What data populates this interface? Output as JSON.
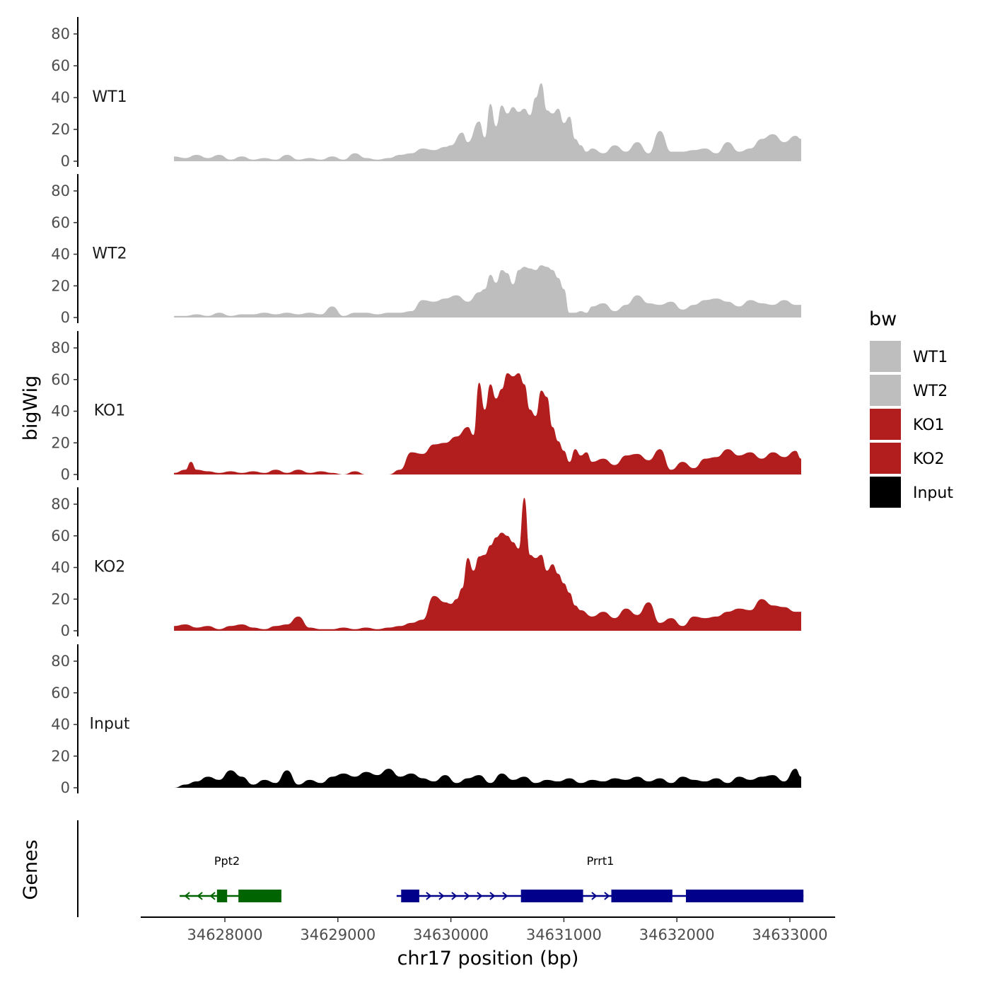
{
  "chart_data": {
    "type": "area",
    "ylabel": "bigWig",
    "xlabel": "chr17 position (bp)",
    "xlim": [
      34627300,
      34633400
    ],
    "ylim": [
      0,
      88
    ],
    "y_ticks": [
      0,
      20,
      40,
      60,
      80
    ],
    "x_ticks": [
      34628000,
      34629000,
      34630000,
      34631000,
      34632000,
      34633000
    ],
    "grid": false,
    "legend": {
      "title": "bw",
      "position": "right",
      "entries": [
        {
          "label": "WT1",
          "color": "#bebebe"
        },
        {
          "label": "WT2",
          "color": "#bebebe"
        },
        {
          "label": "KO1",
          "color": "#b21e1e"
        },
        {
          "label": "KO2",
          "color": "#b21e1e"
        },
        {
          "label": "Input",
          "color": "#000000"
        }
      ]
    },
    "series": [
      {
        "name": "WT1",
        "color": "#bebebe",
        "x": [
          34627550,
          34627650,
          34627750,
          34627850,
          34627950,
          34628050,
          34628150,
          34628250,
          34628350,
          34628450,
          34628550,
          34628650,
          34628750,
          34628850,
          34628950,
          34629050,
          34629150,
          34629250,
          34629350,
          34629450,
          34629550,
          34629650,
          34629750,
          34629850,
          34629950,
          34630000,
          34630100,
          34630150,
          34630250,
          34630300,
          34630350,
          34630400,
          34630450,
          34630500,
          34630550,
          34630600,
          34630650,
          34630700,
          34630750,
          34630800,
          34630850,
          34630900,
          34630950,
          34631000,
          34631050,
          34631100,
          34631150,
          34631200,
          34631250,
          34631350,
          34631450,
          34631550,
          34631650,
          34631750,
          34631850,
          34631950,
          34632050,
          34632150,
          34632250,
          34632350,
          34632450,
          34632550,
          34632650,
          34632750,
          34632850,
          34632950,
          34633050,
          34633100
        ],
        "y": [
          3,
          2,
          4,
          2,
          4,
          1,
          3,
          1,
          2,
          1,
          4,
          1,
          2,
          1,
          3,
          1,
          5,
          2,
          1,
          2,
          4,
          5,
          8,
          7,
          9,
          10,
          18,
          12,
          25,
          15,
          36,
          22,
          35,
          30,
          34,
          31,
          33,
          29,
          40,
          49,
          32,
          30,
          33,
          24,
          28,
          14,
          10,
          6,
          8,
          5,
          10,
          6,
          12,
          5,
          19,
          6,
          6,
          7,
          8,
          5,
          12,
          6,
          8,
          14,
          17,
          12,
          16,
          14
        ]
      },
      {
        "name": "WT2",
        "color": "#bebebe",
        "x": [
          34627550,
          34627650,
          34627750,
          34627850,
          34627950,
          34628050,
          34628150,
          34628250,
          34628350,
          34628450,
          34628550,
          34628650,
          34628750,
          34628850,
          34628950,
          34629050,
          34629150,
          34629250,
          34629350,
          34629450,
          34629550,
          34629650,
          34629750,
          34629850,
          34629950,
          34630050,
          34630150,
          34630250,
          34630300,
          34630350,
          34630400,
          34630450,
          34630500,
          34630550,
          34630600,
          34630650,
          34630700,
          34630750,
          34630800,
          34630850,
          34630900,
          34630950,
          34631000,
          34631050,
          34631100,
          34631150,
          34631200,
          34631250,
          34631350,
          34631450,
          34631550,
          34631650,
          34631750,
          34631850,
          34631950,
          34632050,
          34632150,
          34632250,
          34632350,
          34632450,
          34632550,
          34632650,
          34632750,
          34632850,
          34632950,
          34633050,
          34633100
        ],
        "y": [
          1,
          1,
          2,
          1,
          3,
          1,
          2,
          2,
          3,
          2,
          3,
          2,
          3,
          2,
          7,
          1,
          3,
          3,
          2,
          3,
          3,
          4,
          11,
          10,
          12,
          14,
          10,
          16,
          18,
          27,
          22,
          30,
          28,
          21,
          30,
          32,
          31,
          30,
          33,
          32,
          30,
          25,
          18,
          3,
          3,
          4,
          3,
          7,
          9,
          4,
          8,
          14,
          9,
          8,
          10,
          5,
          8,
          11,
          12,
          10,
          7,
          11,
          9,
          8,
          11,
          8,
          8
        ]
      },
      {
        "name": "KO1",
        "color": "#b21e1e",
        "x": [
          34627550,
          34627650,
          34627700,
          34627750,
          34627850,
          34627950,
          34628050,
          34628150,
          34628250,
          34628350,
          34628450,
          34628550,
          34628650,
          34628750,
          34628850,
          34628950,
          34629050,
          34629150,
          34629250,
          34629350,
          34629450,
          34629550,
          34629650,
          34629750,
          34629850,
          34629950,
          34630050,
          34630150,
          34630200,
          34630250,
          34630300,
          34630350,
          34630400,
          34630450,
          34630500,
          34630550,
          34630600,
          34630650,
          34630700,
          34630750,
          34630800,
          34630850,
          34630900,
          34630950,
          34631000,
          34631050,
          34631100,
          34631150,
          34631200,
          34631250,
          34631350,
          34631450,
          34631550,
          34631650,
          34631750,
          34631850,
          34631950,
          34632050,
          34632150,
          34632250,
          34632350,
          34632450,
          34632550,
          34632650,
          34632750,
          34632850,
          34632950,
          34633050,
          34633100
        ],
        "y": [
          1,
          3,
          8,
          3,
          2,
          1,
          2,
          1,
          2,
          1,
          3,
          1,
          3,
          1,
          2,
          1,
          0,
          2,
          0,
          0,
          0,
          3,
          14,
          13,
          19,
          20,
          24,
          30,
          25,
          58,
          41,
          57,
          48,
          54,
          64,
          62,
          64,
          57,
          41,
          37,
          53,
          49,
          30,
          21,
          15,
          8,
          16,
          12,
          14,
          8,
          10,
          6,
          12,
          13,
          9,
          16,
          3,
          8,
          4,
          10,
          11,
          16,
          12,
          14,
          10,
          14,
          11,
          15,
          10
        ]
      },
      {
        "name": "KO2",
        "color": "#b21e1e",
        "x": [
          34627550,
          34627650,
          34627750,
          34627850,
          34627950,
          34628050,
          34628150,
          34628250,
          34628350,
          34628450,
          34628550,
          34628650,
          34628750,
          34628850,
          34628950,
          34629050,
          34629150,
          34629250,
          34629350,
          34629450,
          34629550,
          34629650,
          34629750,
          34629850,
          34629950,
          34630000,
          34630050,
          34630100,
          34630150,
          34630200,
          34630250,
          34630300,
          34630350,
          34630400,
          34630450,
          34630500,
          34630550,
          34630600,
          34630650,
          34630700,
          34630750,
          34630800,
          34630850,
          34630900,
          34630950,
          34631000,
          34631050,
          34631100,
          34631150,
          34631250,
          34631350,
          34631450,
          34631550,
          34631650,
          34631750,
          34631850,
          34631950,
          34632050,
          34632150,
          34632250,
          34632350,
          34632450,
          34632550,
          34632650,
          34632750,
          34632850,
          34632950,
          34633050,
          34633100
        ],
        "y": [
          3,
          4,
          2,
          3,
          1,
          3,
          4,
          2,
          1,
          3,
          4,
          9,
          2,
          1,
          1,
          2,
          1,
          2,
          1,
          2,
          3,
          5,
          7,
          22,
          18,
          17,
          20,
          27,
          46,
          38,
          47,
          48,
          54,
          59,
          62,
          60,
          56,
          52,
          84,
          48,
          46,
          48,
          38,
          42,
          36,
          30,
          24,
          16,
          13,
          9,
          12,
          8,
          14,
          10,
          18,
          5,
          8,
          3,
          9,
          8,
          9,
          12,
          14,
          13,
          20,
          16,
          15,
          12,
          12
        ]
      },
      {
        "name": "Input",
        "color": "#000000",
        "x": [
          34627550,
          34627650,
          34627750,
          34627850,
          34627950,
          34628050,
          34628150,
          34628250,
          34628350,
          34628450,
          34628550,
          34628650,
          34628750,
          34628850,
          34628950,
          34629050,
          34629150,
          34629250,
          34629350,
          34629450,
          34629550,
          34629650,
          34629750,
          34629850,
          34629950,
          34630050,
          34630150,
          34630250,
          34630350,
          34630450,
          34630550,
          34630650,
          34630750,
          34630850,
          34630950,
          34631050,
          34631150,
          34631250,
          34631350,
          34631450,
          34631550,
          34631650,
          34631750,
          34631850,
          34631950,
          34632050,
          34632150,
          34632250,
          34632350,
          34632450,
          34632550,
          34632650,
          34632750,
          34632850,
          34632950,
          34633050,
          34633100
        ],
        "y": [
          0,
          2,
          4,
          7,
          5,
          11,
          7,
          2,
          5,
          3,
          11,
          2,
          5,
          3,
          7,
          9,
          7,
          10,
          8,
          12,
          7,
          9,
          6,
          4,
          8,
          3,
          6,
          8,
          3,
          9,
          5,
          7,
          3,
          5,
          4,
          6,
          3,
          5,
          4,
          6,
          5,
          7,
          4,
          6,
          3,
          7,
          5,
          4,
          6,
          3,
          7,
          5,
          7,
          8,
          4,
          12,
          7
        ]
      }
    ],
    "genes": [
      {
        "name": "Ppt2",
        "strand": "-",
        "color": "#006400",
        "start": 34627600,
        "end": 34628500,
        "exons": [
          [
            34627930,
            34628020
          ],
          [
            34628120,
            34628500
          ]
        ]
      },
      {
        "name": "Prrt1",
        "strand": "+",
        "color": "#00008b",
        "start": 34629520,
        "end": 34633120,
        "exons": [
          [
            34629560,
            34629720
          ],
          [
            34630620,
            34631170
          ],
          [
            34631420,
            34631960
          ],
          [
            34632080,
            34633120
          ]
        ]
      }
    ],
    "genes_label": "Genes"
  }
}
